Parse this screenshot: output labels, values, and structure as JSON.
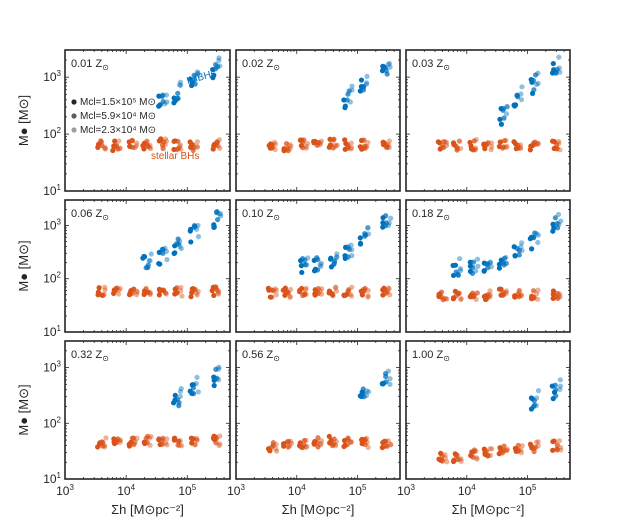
{
  "figure": {
    "ylabel": "M● [M⊙]",
    "xlabel": "Σh [M⊙pc⁻²]"
  },
  "colors": {
    "imbh": "#0072bd",
    "stellar": "#d95319",
    "axis": "#262626"
  },
  "legend": {
    "entries": [
      "Mcl=1.5×10⁵ M⊙",
      "Mcl=5.9×10⁴ M⊙",
      "Mcl=2.3×10⁴ M⊙"
    ],
    "imbh_label": "IMBHs",
    "stellar_label": "stellar BHs"
  },
  "chart_data": {
    "type": "scatter",
    "xscale": "log",
    "yscale": "log",
    "xlim": [
      1000,
      500000
    ],
    "ylim": [
      10,
      3000
    ],
    "x_ticks": [
      "10^3",
      "10^4",
      "10^5"
    ],
    "y_ticks": [
      "10^1",
      "10^2",
      "10^3"
    ],
    "x_values": [
      4000,
      7000,
      13000,
      22000,
      40000,
      70000,
      130000,
      300000
    ],
    "cluster_masses": [
      "1.5e5",
      "5.9e4",
      "2.3e4"
    ],
    "panels": [
      {
        "label": "0.01 Z⊙",
        "metallicity": 0.01,
        "stellar_median": [
          65,
          62,
          65,
          65,
          68,
          65,
          62,
          65
        ],
        "imbh_median": [
          null,
          null,
          null,
          null,
          380,
          550,
          800,
          1500
        ]
      },
      {
        "label": "0.02 Z⊙",
        "metallicity": 0.02,
        "stellar_median": [
          65,
          62,
          65,
          68,
          68,
          65,
          65,
          65
        ],
        "imbh_median": [
          null,
          null,
          null,
          null,
          null,
          450,
          750,
          1500
        ]
      },
      {
        "label": "0.03 Z⊙",
        "metallicity": 0.03,
        "stellar_median": [
          65,
          62,
          65,
          65,
          65,
          65,
          62,
          65
        ],
        "imbh_median": [
          null,
          null,
          null,
          null,
          230,
          450,
          800,
          1500
        ]
      },
      {
        "label": "0.06 Z⊙",
        "metallicity": 0.06,
        "stellar_median": [
          58,
          55,
          58,
          58,
          60,
          58,
          55,
          58
        ],
        "imbh_median": [
          null,
          null,
          null,
          220,
          260,
          420,
          750,
          1400
        ]
      },
      {
        "label": "0.10 Z⊙",
        "metallicity": 0.1,
        "stellar_median": [
          55,
          55,
          58,
          58,
          58,
          58,
          55,
          58
        ],
        "imbh_median": [
          null,
          null,
          190,
          200,
          220,
          330,
          600,
          1200
        ]
      },
      {
        "label": "0.18 Z⊙",
        "metallicity": 0.18,
        "stellar_median": [
          48,
          48,
          50,
          50,
          52,
          50,
          50,
          52
        ],
        "imbh_median": [
          null,
          160,
          170,
          190,
          220,
          350,
          550,
          1200
        ]
      },
      {
        "label": "0.32 Z⊙",
        "metallicity": 0.32,
        "stellar_median": [
          45,
          45,
          48,
          48,
          50,
          48,
          45,
          48
        ],
        "imbh_median": [
          null,
          null,
          null,
          null,
          null,
          280,
          450,
          700
        ]
      },
      {
        "label": "0.56 Z⊙",
        "metallicity": 0.56,
        "stellar_median": [
          38,
          40,
          45,
          45,
          48,
          45,
          45,
          45
        ],
        "imbh_median": [
          null,
          null,
          null,
          null,
          null,
          null,
          350,
          600
        ]
      },
      {
        "label": "1.00 Z⊙",
        "metallicity": 1.0,
        "stellar_median": [
          25,
          25,
          28,
          30,
          32,
          35,
          38,
          40
        ],
        "imbh_median": [
          null,
          null,
          null,
          null,
          null,
          null,
          250,
          400
        ]
      }
    ]
  }
}
